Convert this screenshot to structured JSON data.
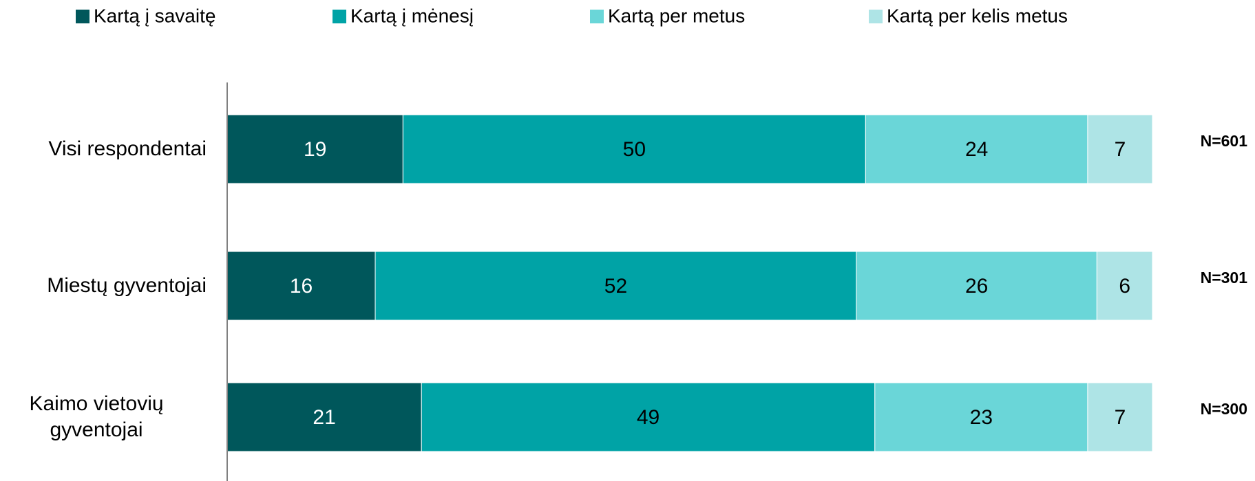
{
  "chart_data": {
    "type": "stacked_bar_horizontal",
    "categories": [
      "Visi respondentai",
      "Miestų gyventojai",
      "Kaimo vietovių gyventojai"
    ],
    "series": [
      {
        "name": "Kartą į savaitę",
        "color": "#00575b",
        "label_color": "#ffffff",
        "values": [
          19,
          16,
          21
        ]
      },
      {
        "name": "Kartą į mėnesį",
        "color": "#00a3a6",
        "label_color": "#000000",
        "values": [
          50,
          52,
          49
        ]
      },
      {
        "name": "Kartą per metus",
        "color": "#6ad6d8",
        "label_color": "#000000",
        "values": [
          24,
          26,
          23
        ]
      },
      {
        "name": "Kartą per kelis metus",
        "color": "#aee4e6",
        "label_color": "#000000",
        "values": [
          7,
          6,
          7
        ]
      }
    ],
    "annotations": [
      "N=601",
      "N=301",
      "N=300"
    ],
    "xlim": [
      0,
      100
    ],
    "legend": "top"
  }
}
